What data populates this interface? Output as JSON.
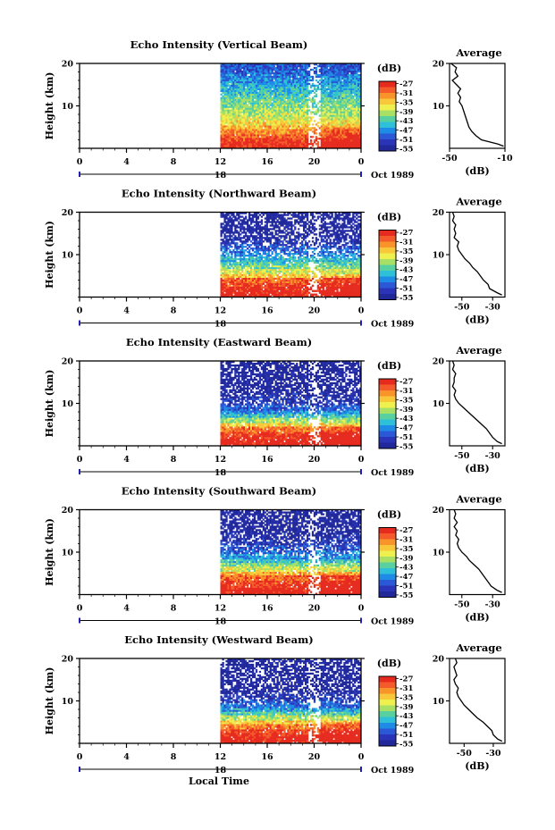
{
  "colors": {
    "background": "#ffffff",
    "axes": "#000000",
    "date_axis": "#1f1fb4",
    "average_line": "#000000",
    "colormap": [
      "#e62a1e",
      "#f55a2a",
      "#f8942a",
      "#f8c83a",
      "#eef04e",
      "#a8e065",
      "#58d0a0",
      "#2ec0d8",
      "#1e8ce6",
      "#2a58d6",
      "#2a34b8",
      "#20289a"
    ]
  },
  "chart_data": [
    {
      "type": "heatmap",
      "title": "Echo Intensity (Vertical Beam)",
      "ylabel": "Height (km)",
      "ylim": [
        0,
        20
      ],
      "yticks": [
        10,
        20
      ],
      "xlim": [
        0,
        24
      ],
      "xticks": [
        "0",
        "4",
        "8",
        "12",
        "16",
        "20",
        "0"
      ],
      "data_start_hour": 12,
      "date_label": "18",
      "date_suffix": "Oct 1989",
      "colorbar": {
        "unit": "(dB)",
        "ticks": [
          "-27",
          "-31",
          "-35",
          "-39",
          "-43",
          "-47",
          "-51",
          "-55"
        ],
        "range": [
          -56,
          -26
        ]
      },
      "fill_profile": [
        -26,
        -27,
        -28,
        -30,
        -32,
        -34,
        -36,
        -38,
        -39,
        -40,
        -41,
        -42,
        -43,
        -44,
        -45,
        -46,
        -47,
        -48,
        -49,
        -50,
        -50
      ],
      "no_data_fraction": 0.03,
      "gap_hours": [
        19.5,
        20.5
      ],
      "average": {
        "title": "Average",
        "xlabel": "(dB)",
        "xlim": [
          -50,
          -10
        ],
        "xticks": [
          -50,
          -10
        ],
        "ylim": [
          0,
          20
        ],
        "yticks": [
          10,
          20
        ],
        "heights": [
          0.5,
          1,
          2,
          3,
          4,
          5,
          6,
          7,
          8,
          9,
          10,
          11,
          12,
          13,
          14,
          15,
          16,
          17,
          18,
          19,
          20
        ],
        "values": [
          -11,
          -15,
          -27,
          -31,
          -34,
          -36,
          -37,
          -38,
          -39,
          -40,
          -41,
          -43,
          -42,
          -44,
          -42,
          -45,
          -48,
          -44,
          -46,
          -45,
          -49
        ]
      }
    },
    {
      "type": "heatmap",
      "title": "Echo Intensity (Northward Beam)",
      "ylabel": "Height (km)",
      "ylim": [
        0,
        20
      ],
      "yticks": [
        10,
        20
      ],
      "xlim": [
        0,
        24
      ],
      "xticks": [
        "0",
        "4",
        "8",
        "12",
        "16",
        "20",
        "0"
      ],
      "data_start_hour": 12,
      "date_label": "18",
      "date_suffix": "Oct 1989",
      "colorbar": {
        "unit": "(dB)",
        "ticks": [
          "-27",
          "-31",
          "-35",
          "-39",
          "-43",
          "-47",
          "-51",
          "-55"
        ],
        "range": [
          -56,
          -26
        ]
      },
      "fill_profile": [
        -26,
        -26,
        -27,
        -28,
        -30,
        -35,
        -38,
        -41,
        -43,
        -45,
        -47,
        -49,
        -51,
        -53,
        -54,
        -55,
        -55,
        -55,
        -55,
        -55,
        -55
      ],
      "no_data_fraction": 0.3,
      "gap_hours": [
        19.5,
        20.5
      ],
      "average": {
        "title": "Average",
        "xlabel": "(dB)",
        "xlim": [
          -58,
          -22
        ],
        "xticks": [
          -50,
          -30
        ],
        "ylim": [
          0,
          20
        ],
        "yticks": [
          10,
          20
        ],
        "heights": [
          0.5,
          1,
          2,
          3,
          4,
          5,
          6,
          7,
          8,
          9,
          10,
          11,
          12,
          13,
          14,
          15,
          16,
          17,
          18,
          19,
          20
        ],
        "values": [
          -24,
          -27,
          -32,
          -33,
          -36,
          -38,
          -40,
          -43,
          -45,
          -48,
          -50,
          -52,
          -53,
          -52,
          -55,
          -54,
          -55,
          -54,
          -56,
          -55,
          -56
        ]
      }
    },
    {
      "type": "heatmap",
      "title": "Echo Intensity (Eastward Beam)",
      "ylabel": "Height (km)",
      "ylim": [
        0,
        20
      ],
      "yticks": [
        10,
        20
      ],
      "xlim": [
        0,
        24
      ],
      "xticks": [
        "0",
        "4",
        "8",
        "12",
        "16",
        "20",
        "0"
      ],
      "data_start_hour": 12,
      "date_label": "18",
      "date_suffix": "Oct 1989",
      "colorbar": {
        "unit": "(dB)",
        "ticks": [
          "-27",
          "-31",
          "-35",
          "-39",
          "-43",
          "-47",
          "-51",
          "-55"
        ],
        "range": [
          -56,
          -26
        ]
      },
      "fill_profile": [
        -26,
        -26,
        -27,
        -28,
        -31,
        -36,
        -40,
        -44,
        -47,
        -50,
        -52,
        -53,
        -54,
        -55,
        -55,
        -55,
        -55,
        -55,
        -55,
        -55,
        -55
      ],
      "no_data_fraction": 0.28,
      "gap_hours": [
        19.5,
        20.5
      ],
      "average": {
        "title": "Average",
        "xlabel": "(dB)",
        "xlim": [
          -58,
          -22
        ],
        "xticks": [
          -50,
          -30
        ],
        "ylim": [
          0,
          20
        ],
        "yticks": [
          10,
          20
        ],
        "heights": [
          0.5,
          1,
          2,
          3,
          4,
          5,
          6,
          7,
          8,
          9,
          10,
          11,
          12,
          13,
          14,
          15,
          16,
          17,
          18,
          19,
          20
        ],
        "values": [
          -24,
          -27,
          -30,
          -32,
          -34,
          -37,
          -40,
          -43,
          -46,
          -49,
          -52,
          -54,
          -55,
          -54,
          -56,
          -55,
          -55,
          -54,
          -56,
          -55,
          -56
        ]
      }
    },
    {
      "type": "heatmap",
      "title": "Echo Intensity (Southward Beam)",
      "ylabel": "Height (km)",
      "ylim": [
        0,
        20
      ],
      "yticks": [
        10,
        20
      ],
      "xlim": [
        0,
        24
      ],
      "xticks": [
        "0",
        "4",
        "8",
        "12",
        "16",
        "20",
        "0"
      ],
      "data_start_hour": 12,
      "date_label": "18",
      "date_suffix": "Oct 1989",
      "colorbar": {
        "unit": "(dB)",
        "ticks": [
          "-27",
          "-31",
          "-35",
          "-39",
          "-43",
          "-47",
          "-51",
          "-55"
        ],
        "range": [
          -56,
          -26
        ]
      },
      "fill_profile": [
        -26,
        -26,
        -27,
        -28,
        -30,
        -34,
        -38,
        -41,
        -44,
        -47,
        -49,
        -51,
        -52,
        -53,
        -54,
        -55,
        -55,
        -55,
        -55,
        -55,
        -55
      ],
      "no_data_fraction": 0.25,
      "gap_hours": [
        19.5,
        20.5
      ],
      "average": {
        "title": "Average",
        "xlabel": "(dB)",
        "xlim": [
          -58,
          -22
        ],
        "xticks": [
          -50,
          -30
        ],
        "ylim": [
          0,
          20
        ],
        "yticks": [
          10,
          20
        ],
        "heights": [
          0.5,
          1,
          2,
          3,
          4,
          5,
          6,
          7,
          8,
          9,
          10,
          11,
          12,
          13,
          14,
          15,
          16,
          17,
          18,
          19,
          20
        ],
        "values": [
          -24,
          -27,
          -31,
          -33,
          -35,
          -37,
          -39,
          -42,
          -45,
          -47,
          -50,
          -52,
          -53,
          -52,
          -54,
          -53,
          -55,
          -53,
          -55,
          -54,
          -55
        ]
      }
    },
    {
      "type": "heatmap",
      "title": "Echo Intensity (Westward Beam)",
      "ylabel": "Height (km)",
      "ylim": [
        0,
        20
      ],
      "yticks": [
        10,
        20
      ],
      "xlim": [
        0,
        24
      ],
      "xticks": [
        "0",
        "4",
        "8",
        "12",
        "16",
        "20",
        "0"
      ],
      "data_start_hour": 12,
      "date_label": "18",
      "date_suffix": "Oct 1989",
      "colorbar": {
        "unit": "(dB)",
        "ticks": [
          "-27",
          "-31",
          "-35",
          "-39",
          "-43",
          "-47",
          "-51",
          "-55"
        ],
        "range": [
          -56,
          -26
        ]
      },
      "fill_profile": [
        -26,
        -26,
        -27,
        -28,
        -31,
        -35,
        -39,
        -43,
        -46,
        -49,
        -51,
        -53,
        -54,
        -55,
        -55,
        -55,
        -55,
        -55,
        -55,
        -55,
        -55
      ],
      "no_data_fraction": 0.3,
      "gap_hours": [
        19.5,
        20.5
      ],
      "average": {
        "title": "Average",
        "xlabel": "(dB)",
        "xlim": [
          -60,
          -22
        ],
        "xticks": [
          -50,
          -30
        ],
        "ylim": [
          0,
          20
        ],
        "yticks": [
          10,
          20
        ],
        "heights": [
          0.5,
          1,
          2,
          3,
          4,
          5,
          6,
          7,
          8,
          9,
          10,
          11,
          12,
          13,
          14,
          15,
          16,
          17,
          18,
          19,
          20
        ],
        "values": [
          -24,
          -27,
          -30,
          -31,
          -34,
          -37,
          -41,
          -44,
          -47,
          -50,
          -52,
          -54,
          -55,
          -54,
          -56,
          -57,
          -55,
          -56,
          -57,
          -55,
          -56
        ]
      }
    }
  ],
  "footer": {
    "xlabel": "Local Time"
  }
}
